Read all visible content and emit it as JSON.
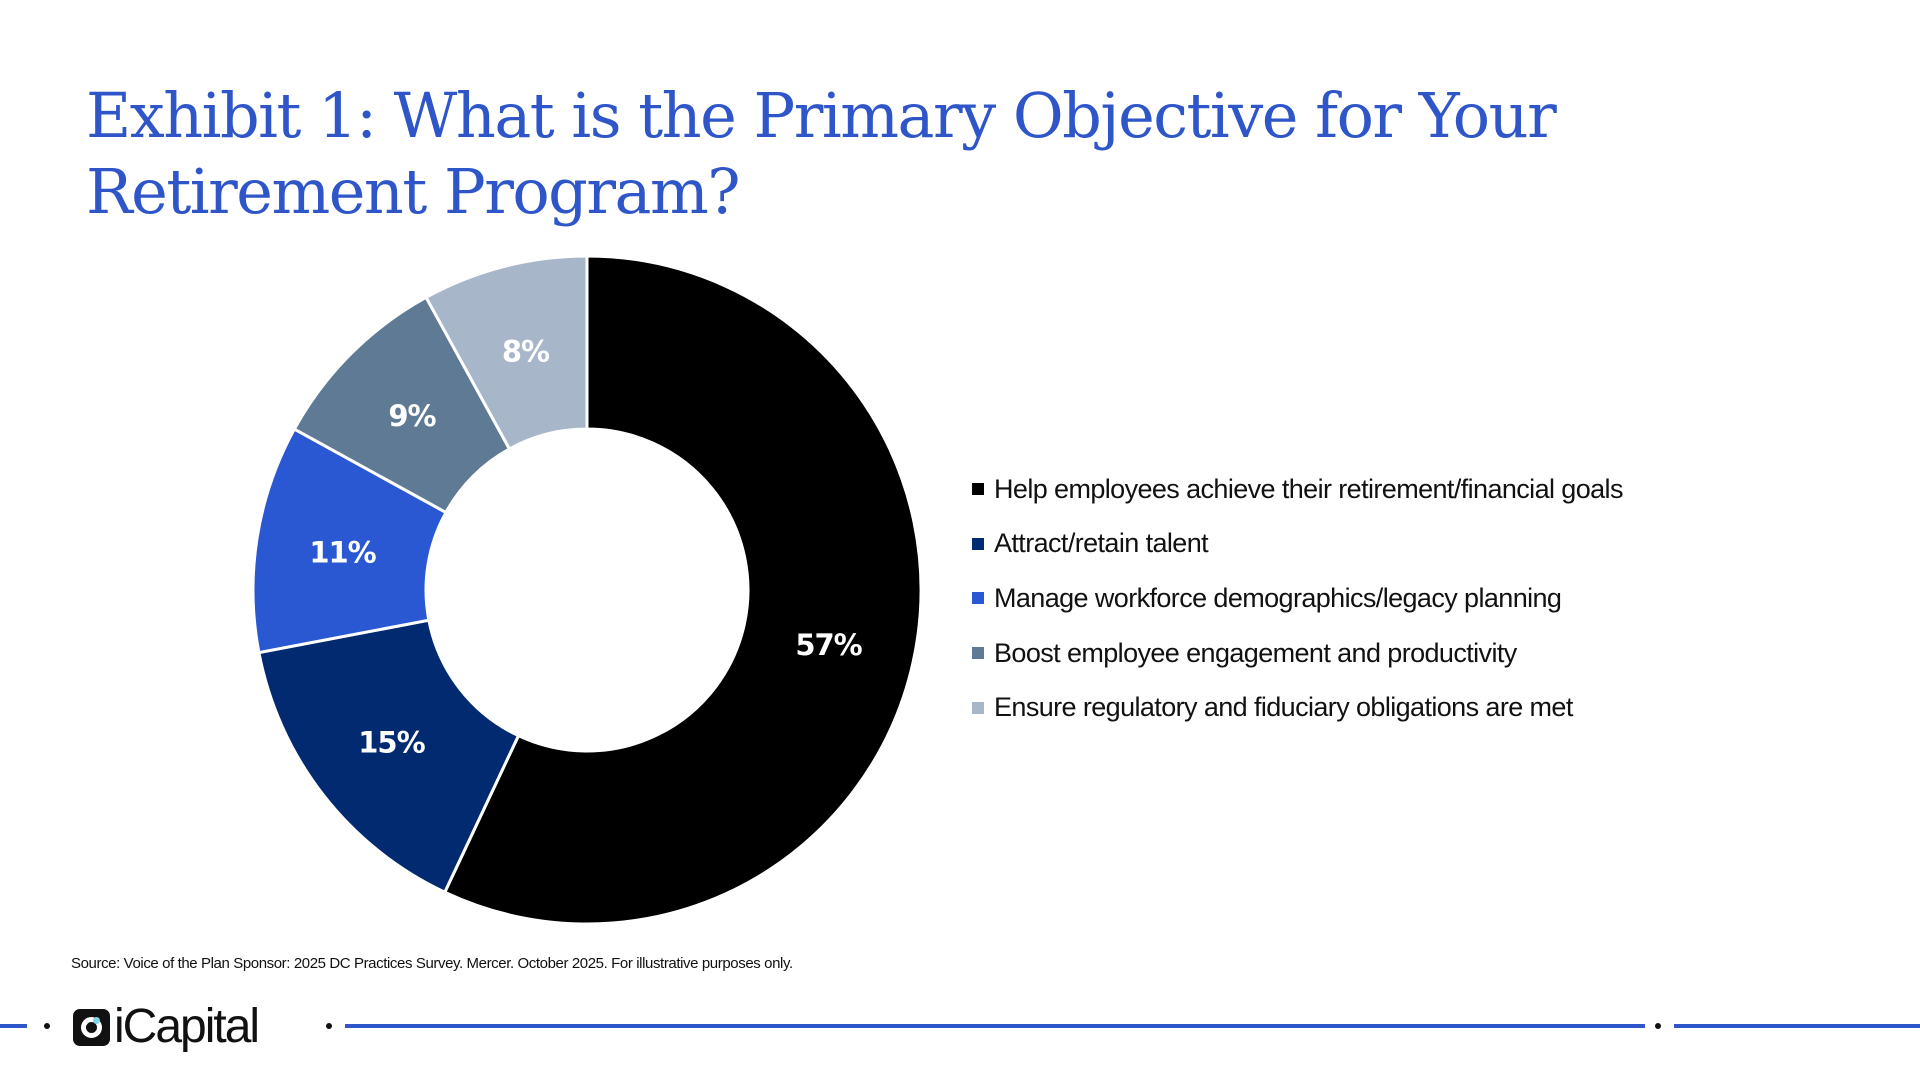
{
  "chart_data": {
    "type": "pie",
    "donut": true,
    "title": "Exhibit 1: What is the Primary Objective for Your Retirement Program?",
    "categories": [
      "Help employees achieve their retirement/financial goals",
      "Attract/retain talent",
      "Manage workforce demographics/legacy planning",
      "Boost employee engagement and productivity",
      "Ensure regulatory and fiduciary obligations are met"
    ],
    "values": [
      57,
      15,
      11,
      9,
      8
    ],
    "data_labels": [
      "57%",
      "15%",
      "11%",
      "9%",
      "8%"
    ],
    "colors": [
      "#000000",
      "#022a70",
      "#2a57d2",
      "#5f7a95",
      "#a7b6c8"
    ],
    "legend_placement": "right",
    "start": "top",
    "direction": "clockwise"
  },
  "source": "Source: Voice of the Plan Sponsor: 2025 DC Practices Survey. Mercer. October 2025. For illustrative purposes only.",
  "footer": {
    "logo_text": "iCapital",
    "accent": "#2f56c9"
  }
}
